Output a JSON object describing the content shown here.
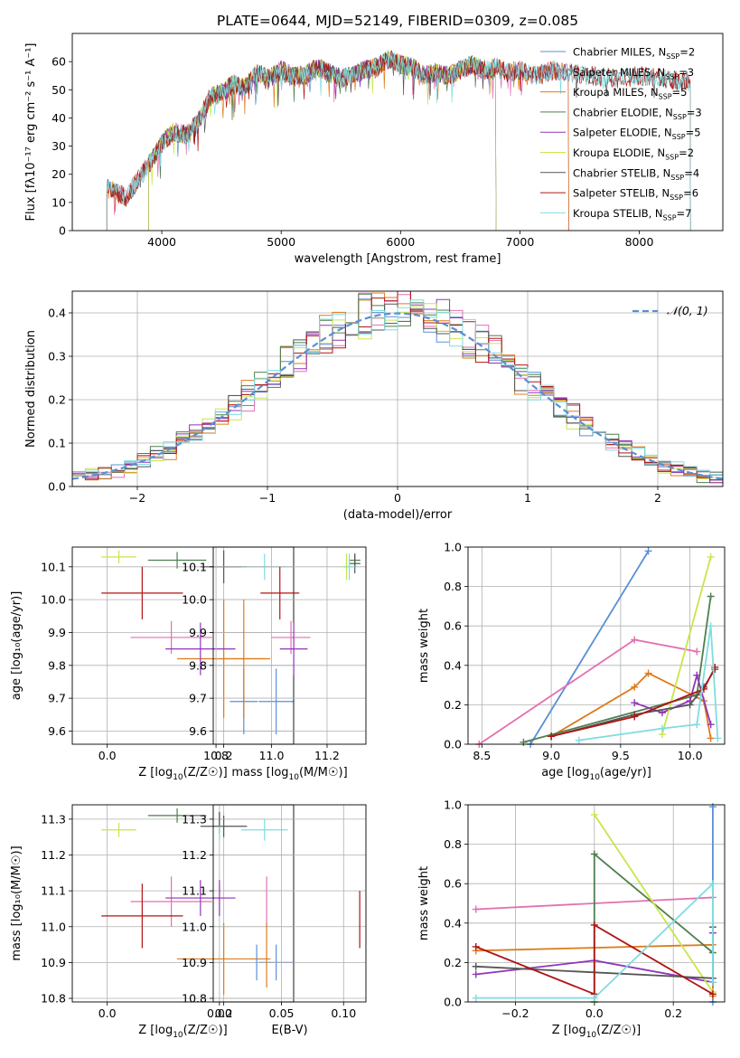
{
  "figure_title": "PLATE=0644, MJD=52149, FIBERID=0309, z=0.085",
  "colors": {
    "Chabrier MILES": "#5a8fd6",
    "Salpeter MILES": "#e46fb0",
    "Kroupa MILES": "#de7b1a",
    "Chabrier ELODIE": "#4e7f4e",
    "Salpeter ELODIE": "#9035b8",
    "Kroupa ELODIE": "#c7e64b",
    "Chabrier STELIB": "#555555",
    "Salpeter STELIB": "#b01515",
    "Kroupa STELIB": "#7fdce0"
  },
  "chart_data": [
    {
      "type": "line",
      "title": "PLATE=0644, MJD=52149, FIBERID=0309, z=0.085",
      "xlabel": "wavelength [Angstrom, rest frame]",
      "ylabel": "Flux [fλ10⁻¹⁷ erg cm⁻² s⁻¹ A⁻¹]",
      "xlim": [
        3250,
        8700
      ],
      "ylim": [
        0,
        70
      ],
      "xticks": [
        4000,
        5000,
        6000,
        7000,
        8000
      ],
      "yticks": [
        0,
        10,
        20,
        30,
        40,
        50,
        60
      ],
      "legend_position": "top-right",
      "continuum": {
        "x": [
          3540,
          3600,
          3700,
          3800,
          3900,
          4000,
          4100,
          4200,
          4300,
          4400,
          4500,
          4600,
          4700,
          4800,
          4900,
          5000,
          5100,
          5200,
          5300,
          5400,
          5500,
          5600,
          5700,
          5800,
          5900,
          6000,
          6100,
          6200,
          6300,
          6400,
          6500,
          6600,
          6700,
          6800,
          6900,
          7000,
          7100,
          7200,
          7300,
          7400,
          7600,
          7800,
          8000,
          8200,
          8400
        ],
        "y": [
          15,
          14,
          12,
          18,
          24,
          31,
          35,
          34,
          38,
          47,
          49,
          52,
          51,
          56,
          54,
          57,
          55,
          55,
          58,
          56,
          54,
          55,
          57,
          58,
          61,
          59,
          58,
          55,
          56,
          55,
          57,
          59,
          57,
          58,
          56,
          57,
          55,
          56,
          57,
          56,
          55,
          54,
          55,
          54,
          53
        ]
      },
      "series": [
        {
          "name": "Chabrier MILES, N_SSP=2",
          "label_main": "Chabrier MILES, N",
          "label_sub": "SSP",
          "label_end": "=2",
          "start": 3540,
          "end": 7410
        },
        {
          "name": "Salpeter MILES, N_SSP=3",
          "label_main": "Salpeter MILES, N",
          "label_sub": "SSP",
          "label_end": "=3",
          "start": 3540,
          "end": 7410
        },
        {
          "name": "Kroupa MILES, N_SSP=5",
          "label_main": "Kroupa MILES, N",
          "label_sub": "SSP",
          "label_end": "=5",
          "start": 3540,
          "end": 7410
        },
        {
          "name": "Chabrier ELODIE, N_SSP=3",
          "label_main": "Chabrier ELODIE, N",
          "label_sub": "SSP",
          "label_end": "=3",
          "start": 3890,
          "end": 6800
        },
        {
          "name": "Salpeter ELODIE, N_SSP=5",
          "label_main": "Salpeter ELODIE, N",
          "label_sub": "SSP",
          "label_end": "=5",
          "start": 3890,
          "end": 6800
        },
        {
          "name": "Kroupa ELODIE, N_SSP=2",
          "label_main": "Kroupa ELODIE, N",
          "label_sub": "SSP",
          "label_end": "=2",
          "start": 3890,
          "end": 6800
        },
        {
          "name": "Chabrier STELIB, N_SSP=4",
          "label_main": "Chabrier STELIB, N",
          "label_sub": "SSP",
          "label_end": "=4",
          "start": 3540,
          "end": 8430
        },
        {
          "name": "Salpeter STELIB, N_SSP=6",
          "label_main": "Salpeter STELIB, N",
          "label_sub": "SSP",
          "label_end": "=6",
          "start": 3540,
          "end": 8430
        },
        {
          "name": "Kroupa STELIB, N_SSP=7",
          "label_main": "Kroupa STELIB, N",
          "label_sub": "SSP",
          "label_end": "=7",
          "start": 3540,
          "end": 8430
        }
      ]
    },
    {
      "type": "line",
      "xlabel": "(data-model)/error",
      "ylabel": "Normed distribution",
      "xlim": [
        -2.5,
        2.5
      ],
      "ylim": [
        0,
        0.45
      ],
      "xticks": [
        -2,
        -1,
        0,
        1,
        2
      ],
      "yticks": [
        0.0,
        0.1,
        0.2,
        0.3,
        0.4
      ],
      "grid": true,
      "legend_position": "top-right",
      "reference_curve": {
        "name": "N(0,1)",
        "label": "𝒩(0, 1)",
        "mean": 0,
        "sigma": 1,
        "style": "dashed"
      },
      "histogram_bin_width": 0.1,
      "series": [
        "Chabrier MILES",
        "Salpeter MILES",
        "Kroupa MILES",
        "Chabrier ELODIE",
        "Salpeter ELODIE",
        "Kroupa ELODIE",
        "Chabrier STELIB",
        "Salpeter STELIB",
        "Kroupa STELIB"
      ]
    },
    {
      "type": "scatter",
      "xlabel_main": "Z [log",
      "xlabel_sub": "10",
      "xlabel_end": "(Z/Z☉)]",
      "ylabel": "age  [log₁₀(age/yr)]",
      "xlim": [
        -0.06,
        0.32
      ],
      "ylim": [
        9.56,
        10.16
      ],
      "xticks": [
        0.0,
        0.2
      ],
      "yticks": [
        9.6,
        9.7,
        9.8,
        9.9,
        10.0,
        10.1
      ],
      "grid": true,
      "points": [
        {
          "series": "Chabrier MILES",
          "x": 0.29,
          "y": 9.69,
          "xerr": 0.03,
          "yerr": 0.1
        },
        {
          "series": "Salpeter MILES",
          "x": 0.11,
          "y": 9.885,
          "xerr": 0.07,
          "yerr": 0.05
        },
        {
          "series": "Kroupa MILES",
          "x": 0.2,
          "y": 9.82,
          "xerr": 0.08,
          "yerr": 0.18
        },
        {
          "series": "Chabrier ELODIE",
          "x": 0.12,
          "y": 10.12,
          "xerr": 0.05,
          "yerr": 0.025
        },
        {
          "series": "Salpeter ELODIE",
          "x": 0.16,
          "y": 9.85,
          "xerr": 0.06,
          "yerr": 0.08
        },
        {
          "series": "Kroupa ELODIE",
          "x": 0.02,
          "y": 10.13,
          "xerr": 0.03,
          "yerr": 0.02
        },
        {
          "series": "Chabrier STELIB",
          "x": 0.2,
          "y": 10.1,
          "xerr": 0.04,
          "yerr": 0.05
        },
        {
          "series": "Salpeter STELIB",
          "x": 0.06,
          "y": 10.02,
          "xerr": 0.07,
          "yerr": 0.08
        },
        {
          "series": "Kroupa STELIB",
          "x": 0.27,
          "y": 10.1,
          "xerr": 0.04,
          "yerr": 0.04
        }
      ]
    },
    {
      "type": "scatter",
      "xlabel_main": "mass [log",
      "xlabel_sub": "10",
      "xlabel_end": "(M/M☉)]",
      "ylabel": "",
      "xlim": [
        10.79,
        11.34
      ],
      "ylim": [
        9.56,
        10.16
      ],
      "xticks": [
        10.8,
        11.0,
        11.2
      ],
      "yticks": [
        9.6,
        9.7,
        9.8,
        9.9,
        10.0,
        10.1
      ],
      "grid": true,
      "points": [
        {
          "series": "Chabrier MILES",
          "x": 10.9,
          "y": 9.69,
          "xerr": 0.05,
          "yerr": 0.1
        },
        {
          "series": "Salpeter MILES",
          "x": 11.07,
          "y": 9.885,
          "xerr": 0.07,
          "yerr": 0.05
        },
        {
          "series": "Kroupa MILES",
          "x": 10.9,
          "y": 9.82,
          "xerr": 0.08,
          "yerr": 0.18
        },
        {
          "series": "Chabrier ELODIE",
          "x": 11.3,
          "y": 10.12,
          "xerr": 0.02,
          "yerr": 0.02
        },
        {
          "series": "Salpeter ELODIE",
          "x": 11.08,
          "y": 9.85,
          "xerr": 0.05,
          "yerr": 0.08
        },
        {
          "series": "Kroupa ELODIE",
          "x": 11.27,
          "y": 10.1,
          "xerr": 0.02,
          "yerr": 0.04
        },
        {
          "series": "Chabrier STELIB",
          "x": 11.3,
          "y": 10.11,
          "xerr": 0.02,
          "yerr": 0.03
        },
        {
          "series": "Salpeter STELIB",
          "x": 11.03,
          "y": 10.02,
          "xerr": 0.07,
          "yerr": 0.08
        },
        {
          "series": "Kroupa STELIB",
          "x": 11.28,
          "y": 10.1,
          "xerr": 0.02,
          "yerr": 0.04
        }
      ]
    },
    {
      "type": "line",
      "xlabel_main": "age  [log",
      "xlabel_sub": "10",
      "xlabel_end": "(age/yr)]",
      "ylabel": "mass weight",
      "xlim": [
        8.4,
        10.25
      ],
      "ylim": [
        0,
        1
      ],
      "xticks": [
        8.5,
        9.0,
        9.5,
        10.0
      ],
      "yticks": [
        0.0,
        0.2,
        0.4,
        0.6,
        0.8,
        1.0
      ],
      "grid": true,
      "series": [
        {
          "name": "Chabrier MILES",
          "x": [
            8.85,
            9.7
          ],
          "y": [
            0.0,
            0.98
          ]
        },
        {
          "name": "Salpeter MILES",
          "x": [
            8.48,
            9.6,
            10.05
          ],
          "y": [
            0.0,
            0.53,
            0.47
          ]
        },
        {
          "name": "Kroupa MILES",
          "x": [
            9.0,
            9.6,
            9.7,
            10.1,
            10.15
          ],
          "y": [
            0.04,
            0.29,
            0.36,
            0.22,
            0.03
          ]
        },
        {
          "name": "Chabrier ELODIE",
          "x": [
            8.8,
            10.05,
            10.15
          ],
          "y": [
            0.01,
            0.25,
            0.75
          ]
        },
        {
          "name": "Salpeter ELODIE",
          "x": [
            9.6,
            9.8,
            10.0,
            10.05,
            10.15
          ],
          "y": [
            0.21,
            0.16,
            0.22,
            0.35,
            0.1
          ]
        },
        {
          "name": "Kroupa ELODIE",
          "x": [
            9.8,
            10.15
          ],
          "y": [
            0.05,
            0.95
          ]
        },
        {
          "name": "Chabrier STELIB",
          "x": [
            9.0,
            9.6,
            10.0,
            10.1,
            10.18
          ],
          "y": [
            0.04,
            0.15,
            0.2,
            0.29,
            0.38
          ]
        },
        {
          "name": "Salpeter STELIB",
          "x": [
            9.0,
            9.6,
            10.1,
            10.18
          ],
          "y": [
            0.04,
            0.14,
            0.28,
            0.39
          ]
        },
        {
          "name": "Kroupa STELIB",
          "x": [
            9.2,
            9.8,
            10.05,
            10.15,
            10.2
          ],
          "y": [
            0.02,
            0.08,
            0.1,
            0.6,
            0.03
          ]
        }
      ]
    },
    {
      "type": "scatter",
      "xlabel_main": "Z [log",
      "xlabel_sub": "10",
      "xlabel_end": "(Z/Z☉)]",
      "ylabel": "mass [log₁₀(M/M☉)]",
      "xlim": [
        -0.06,
        0.32
      ],
      "ylim": [
        10.79,
        11.34
      ],
      "xticks": [
        0.0,
        0.2
      ],
      "yticks": [
        10.8,
        10.9,
        11.0,
        11.1,
        11.2,
        11.3
      ],
      "grid": true,
      "points": [
        {
          "series": "Chabrier MILES",
          "x": 0.29,
          "y": 10.9,
          "xerr": 0.03,
          "yerr": 0.05
        },
        {
          "series": "Salpeter MILES",
          "x": 0.11,
          "y": 11.07,
          "xerr": 0.07,
          "yerr": 0.07
        },
        {
          "series": "Kroupa MILES",
          "x": 0.2,
          "y": 10.91,
          "xerr": 0.08,
          "yerr": 0.1
        },
        {
          "series": "Chabrier ELODIE",
          "x": 0.12,
          "y": 11.31,
          "xerr": 0.05,
          "yerr": 0.02
        },
        {
          "series": "Salpeter ELODIE",
          "x": 0.16,
          "y": 11.08,
          "xerr": 0.06,
          "yerr": 0.05
        },
        {
          "series": "Kroupa ELODIE",
          "x": 0.02,
          "y": 11.27,
          "xerr": 0.03,
          "yerr": 0.02
        },
        {
          "series": "Chabrier STELIB",
          "x": 0.2,
          "y": 11.28,
          "xerr": 0.04,
          "yerr": 0.03
        },
        {
          "series": "Salpeter STELIB",
          "x": 0.06,
          "y": 11.03,
          "xerr": 0.07,
          "yerr": 0.09
        },
        {
          "series": "Kroupa STELIB",
          "x": 0.27,
          "y": 11.27,
          "xerr": 0.04,
          "yerr": 0.03
        }
      ]
    },
    {
      "type": "scatter",
      "xlabel": "E(B-V)",
      "ylabel": "",
      "xlim": [
        -0.005,
        0.118
      ],
      "ylim": [
        10.79,
        11.34
      ],
      "xticks": [
        0.0,
        0.05,
        0.1
      ],
      "yticks": [
        10.8,
        10.9,
        11.0,
        11.1,
        11.2,
        11.3
      ],
      "grid": true,
      "points": [
        {
          "series": "Chabrier MILES",
          "x": 0.03,
          "y": 10.9,
          "yerr": 0.05
        },
        {
          "series": "Salpeter MILES",
          "x": 0.038,
          "y": 11.07,
          "yerr": 0.07
        },
        {
          "series": "Kroupa MILES",
          "x": 0.038,
          "y": 10.92,
          "yerr": 0.09
        },
        {
          "series": "Chabrier ELODIE",
          "x": 0.0,
          "y": 11.3,
          "yerr": 0.02
        },
        {
          "series": "Salpeter ELODIE",
          "x": 0.0,
          "y": 11.08,
          "yerr": 0.05
        },
        {
          "series": "Kroupa ELODIE",
          "x": 0.0,
          "y": 11.27,
          "yerr": 0.02
        },
        {
          "series": "Chabrier STELIB",
          "x": 0.0,
          "y": 11.29,
          "yerr": 0.03
        },
        {
          "series": "Salpeter STELIB",
          "x": 0.113,
          "y": 11.02,
          "yerr": 0.08
        },
        {
          "series": "Kroupa STELIB",
          "x": 0.0,
          "y": 11.26,
          "yerr": 0.02
        }
      ]
    },
    {
      "type": "line",
      "xlabel_main": "Z [log",
      "xlabel_sub": "10",
      "xlabel_end": "(Z/Z☉)]",
      "ylabel": "mass weight",
      "xlim": [
        -0.32,
        0.33
      ],
      "ylim": [
        0,
        1
      ],
      "xticks": [
        -0.2,
        0.0,
        0.2
      ],
      "yticks": [
        0.0,
        0.2,
        0.4,
        0.6,
        0.8,
        1.0
      ],
      "grid": true,
      "series": [
        {
          "name": "Chabrier MILES",
          "x": [
            0.3,
            0.3
          ],
          "y": [
            0.0,
            0.99
          ]
        },
        {
          "name": "Salpeter MILES",
          "x": [
            -0.3,
            0.3
          ],
          "y": [
            0.47,
            0.53
          ]
        },
        {
          "name": "Kroupa MILES",
          "x": [
            -0.3,
            0.3,
            0.3
          ],
          "y": [
            0.26,
            0.29,
            0.03
          ]
        },
        {
          "name": "Chabrier ELODIE",
          "x": [
            0.0,
            0.0,
            0.3
          ],
          "y": [
            0.0,
            0.75,
            0.25
          ]
        },
        {
          "name": "Salpeter ELODIE",
          "x": [
            -0.3,
            0.0,
            0.3,
            0.3
          ],
          "y": [
            0.14,
            0.21,
            0.1,
            0.35
          ]
        },
        {
          "name": "Kroupa ELODIE",
          "x": [
            0.0,
            0.3
          ],
          "y": [
            0.95,
            0.05
          ]
        },
        {
          "name": "Chabrier STELIB",
          "x": [
            -0.3,
            0.0,
            0.3,
            0.3
          ],
          "y": [
            0.18,
            0.15,
            0.12,
            0.38
          ]
        },
        {
          "name": "Salpeter STELIB",
          "x": [
            -0.3,
            0.0,
            0.0,
            0.3
          ],
          "y": [
            0.28,
            0.04,
            0.39,
            0.04
          ]
        },
        {
          "name": "Kroupa STELIB",
          "x": [
            -0.3,
            0.0,
            0.3,
            0.3
          ],
          "y": [
            0.02,
            0.02,
            0.6,
            0.1
          ]
        }
      ]
    }
  ]
}
